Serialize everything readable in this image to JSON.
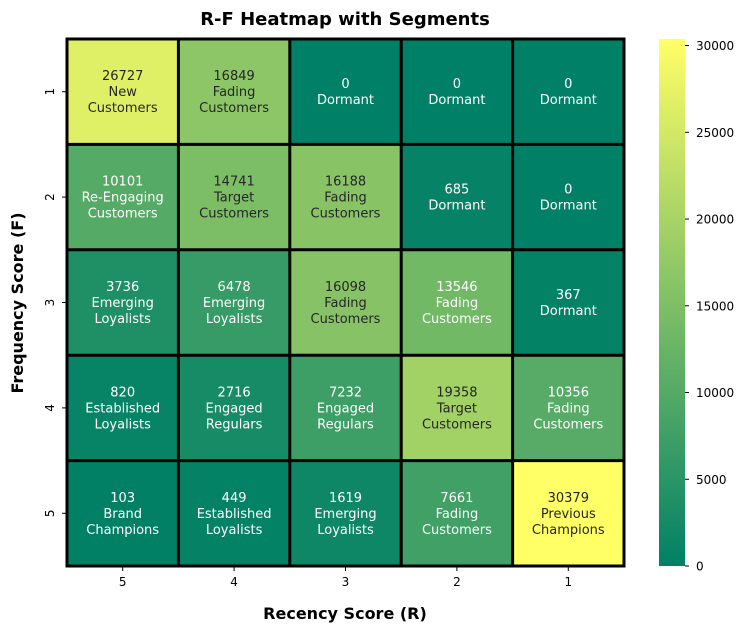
{
  "chart_data": {
    "type": "heatmap",
    "title": "R-F Heatmap with Segments",
    "xlabel": "Recency Score (R)",
    "ylabel": "Frequency Score (F)",
    "x_categories": [
      "5",
      "4",
      "3",
      "2",
      "1"
    ],
    "y_categories": [
      "1",
      "2",
      "3",
      "4",
      "5"
    ],
    "values": [
      [
        26727,
        16849,
        0,
        0,
        0
      ],
      [
        10101,
        14741,
        16188,
        685,
        0
      ],
      [
        3736,
        6478,
        16098,
        13546,
        367
      ],
      [
        820,
        2716,
        7232,
        19358,
        10356
      ],
      [
        103,
        449,
        1619,
        7661,
        30379
      ]
    ],
    "segments": [
      [
        "New\nCustomers",
        "Fading\nCustomers",
        "Dormant",
        "Dormant",
        "Dormant"
      ],
      [
        "Re-Engaging\nCustomers",
        "Target\nCustomers",
        "Fading\nCustomers",
        "Dormant",
        "Dormant"
      ],
      [
        "Emerging\nLoyalists",
        "Emerging\nLoyalists",
        "Fading\nCustomers",
        "Fading\nCustomers",
        "Dormant"
      ],
      [
        "Established\nLoyalists",
        "Engaged\nRegulars",
        "Engaged\nRegulars",
        "Target\nCustomers",
        "Fading\nCustomers"
      ],
      [
        "Brand\nChampions",
        "Established\nLoyalists",
        "Emerging\nLoyalists",
        "Fading\nCustomers",
        "Previous\nChampions"
      ]
    ],
    "colorbar": {
      "min": 0,
      "max": 30379,
      "ticks": [
        0,
        5000,
        10000,
        15000,
        20000,
        25000,
        30000
      ]
    },
    "colormap": "summer",
    "colors": {
      "low": "#008066",
      "high": "#ffff66",
      "grid_line": "#000000"
    }
  }
}
